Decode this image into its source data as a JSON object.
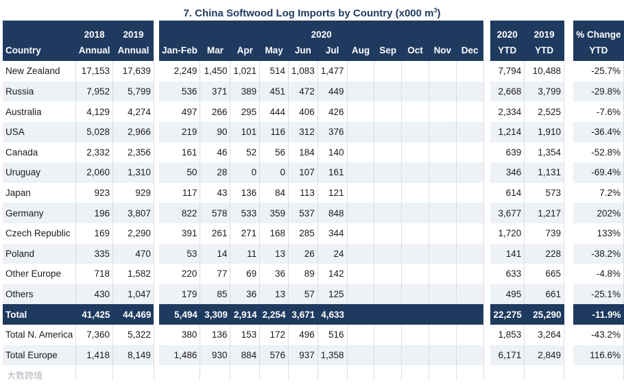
{
  "title": "7. China Softwood Log Imports by Country  (x000 m",
  "title_sup": "3",
  "title_end": ")",
  "header": {
    "country": "Country",
    "y2018": "2018",
    "y2019": "2019",
    "annual1": "Annual",
    "annual2": "Annual",
    "y2020": "2020",
    "months": [
      "Jan-Feb",
      "Mar",
      "Apr",
      "May",
      "Jun",
      "Jul",
      "Aug",
      "Sep",
      "Oct",
      "Nov",
      "Dec"
    ],
    "ytd2020": "2020",
    "ytd2019": "2019",
    "ytd1": "YTD",
    "ytd2": "YTD",
    "pct": "% Change",
    "pct_ytd": "YTD"
  },
  "rows": [
    {
      "country": "New Zealand",
      "a2018": "17,153",
      "a2019": "17,639",
      "jf": "2,249",
      "mar": "1,450",
      "apr": "1,021",
      "may": "514",
      "jun": "1,083",
      "jul": "1,477",
      "ytd2020": "7,794",
      "ytd2019": "10,488",
      "pct": "-25.7%"
    },
    {
      "country": "Russia",
      "a2018": "7,952",
      "a2019": "5,799",
      "jf": "536",
      "mar": "371",
      "apr": "389",
      "may": "451",
      "jun": "472",
      "jul": "449",
      "ytd2020": "2,668",
      "ytd2019": "3,799",
      "pct": "-29.8%"
    },
    {
      "country": "Australia",
      "a2018": "4,129",
      "a2019": "4,274",
      "jf": "497",
      "mar": "266",
      "apr": "295",
      "may": "444",
      "jun": "406",
      "jul": "426",
      "ytd2020": "2,334",
      "ytd2019": "2,525",
      "pct": "-7.6%"
    },
    {
      "country": "USA",
      "a2018": "5,028",
      "a2019": "2,966",
      "jf": "219",
      "mar": "90",
      "apr": "101",
      "may": "116",
      "jun": "312",
      "jul": "376",
      "ytd2020": "1,214",
      "ytd2019": "1,910",
      "pct": "-36.4%"
    },
    {
      "country": "Canada",
      "a2018": "2,332",
      "a2019": "2,356",
      "jf": "161",
      "mar": "46",
      "apr": "52",
      "may": "56",
      "jun": "184",
      "jul": "140",
      "ytd2020": "639",
      "ytd2019": "1,354",
      "pct": "-52.8%"
    },
    {
      "country": "Uruguay",
      "a2018": "2,060",
      "a2019": "1,310",
      "jf": "50",
      "mar": "28",
      "apr": "0",
      "may": "0",
      "jun": "107",
      "jul": "161",
      "ytd2020": "346",
      "ytd2019": "1,131",
      "pct": "-69.4%"
    },
    {
      "country": "Japan",
      "a2018": "923",
      "a2019": "929",
      "jf": "117",
      "mar": "43",
      "apr": "136",
      "may": "84",
      "jun": "113",
      "jul": "121",
      "ytd2020": "614",
      "ytd2019": "573",
      "pct": "7.2%"
    },
    {
      "country": "Germany",
      "a2018": "196",
      "a2019": "3,807",
      "jf": "822",
      "mar": "578",
      "apr": "533",
      "may": "359",
      "jun": "537",
      "jul": "848",
      "ytd2020": "3,677",
      "ytd2019": "1,217",
      "pct": "202%"
    },
    {
      "country": "Czech Republic",
      "a2018": "169",
      "a2019": "2,290",
      "jf": "391",
      "mar": "261",
      "apr": "271",
      "may": "168",
      "jun": "285",
      "jul": "344",
      "ytd2020": "1,720",
      "ytd2019": "739",
      "pct": "133%"
    },
    {
      "country": "Poland",
      "a2018": "335",
      "a2019": "470",
      "jf": "53",
      "mar": "14",
      "apr": "11",
      "may": "13",
      "jun": "26",
      "jul": "24",
      "ytd2020": "141",
      "ytd2019": "228",
      "pct": "-38.2%"
    },
    {
      "country": "Other Europe",
      "a2018": "718",
      "a2019": "1,582",
      "jf": "220",
      "mar": "77",
      "apr": "69",
      "may": "36",
      "jun": "89",
      "jul": "142",
      "ytd2020": "633",
      "ytd2019": "665",
      "pct": "-4.8%"
    },
    {
      "country": "Others",
      "a2018": "430",
      "a2019": "1,047",
      "jf": "179",
      "mar": "85",
      "apr": "36",
      "may": "13",
      "jun": "57",
      "jul": "125",
      "ytd2020": "495",
      "ytd2019": "661",
      "pct": "-25.1%"
    }
  ],
  "total": {
    "country": "Total",
    "a2018": "41,425",
    "a2019": "44,469",
    "jf": "5,494",
    "mar": "3,309",
    "apr": "2,914",
    "may": "2,254",
    "jun": "3,671",
    "jul": "4,633",
    "ytd2020": "22,275",
    "ytd2019": "25,290",
    "pct": "-11.9%"
  },
  "subtotals": [
    {
      "country": "Total N. America",
      "a2018": "7,360",
      "a2019": "5,322",
      "jf": "380",
      "mar": "136",
      "apr": "153",
      "may": "172",
      "jun": "496",
      "jul": "516",
      "ytd2020": "1,853",
      "ytd2019": "3,264",
      "pct": "-43.2%"
    },
    {
      "country": "Total Europe",
      "a2018": "1,418",
      "a2019": "8,149",
      "jf": "1,486",
      "mar": "930",
      "apr": "884",
      "may": "576",
      "jun": "937",
      "jul": "1,358",
      "ytd2020": "6,171",
      "ytd2019": "2,849",
      "pct": "116.6%"
    }
  ],
  "watermark": "大数跨境"
}
